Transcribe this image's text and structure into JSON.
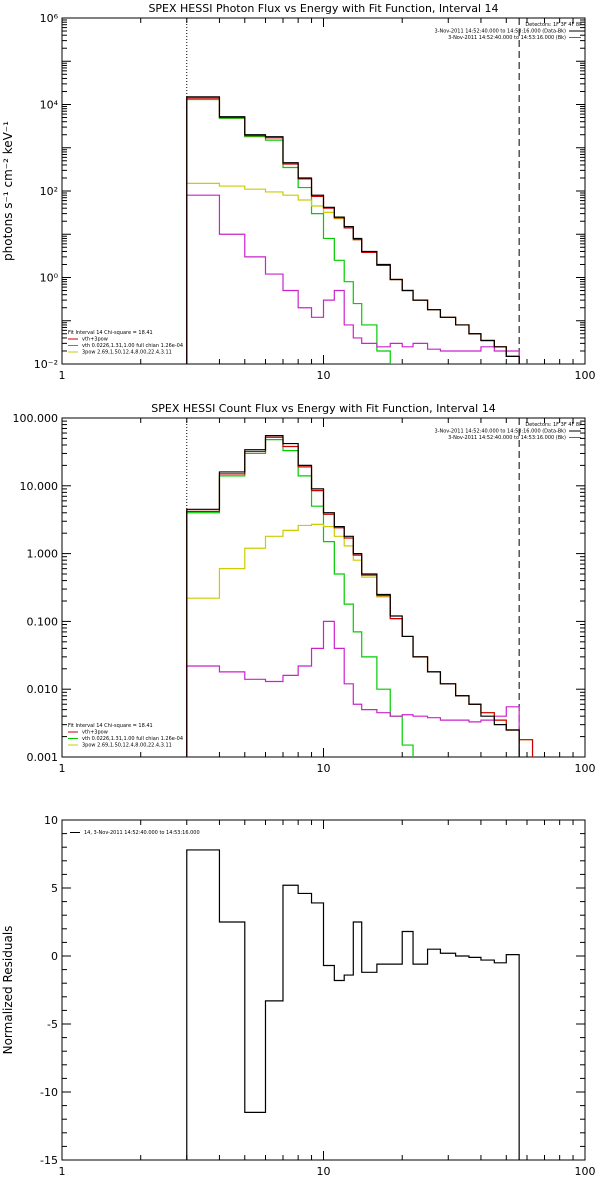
{
  "chart_data": [
    {
      "type": "line",
      "title": "SPEX HESSI Photon Flux vs Energy with Fit Function, Interval 14",
      "ylabel": "photons s⁻¹ cm⁻² keV⁻¹",
      "xlabel": "",
      "xscale": "log",
      "yscale": "log",
      "xlim": [
        1,
        100
      ],
      "ylim": [
        0.01,
        1000000
      ],
      "x_ticks": [
        "1",
        "10",
        "100"
      ],
      "y_ticks": [
        {
          "value": 0.01,
          "label": "10⁻²"
        },
        {
          "value": 1,
          "label": "10⁰"
        },
        {
          "value": 100,
          "label": "10²"
        },
        {
          "value": 10000,
          "label": "10⁴"
        },
        {
          "value": 1000000,
          "label": "10⁶"
        }
      ],
      "fit_range_keV": [
        3,
        56
      ],
      "legend_top_right": {
        "header": "Detectors: 1F 3F 4F 8F",
        "entries": [
          {
            "text": "3-Nov-2011 14:52:40.000 to 14:53:16.000 (Data-Bk)",
            "color": "#000000"
          },
          {
            "text": "3-Nov-2011 14:52:40.000 to 14:53:16.000 (Bk)",
            "color": "#cc22cc"
          }
        ]
      },
      "legend_bottom_left": {
        "header": "Fit Interval 14   Chi-square = 18.41",
        "entries": [
          {
            "text": "vth+3pow",
            "color": "#cc0000"
          },
          {
            "text": "vth 0.0226,1.31,1.00  full chian 1.26e-04",
            "color": "#00cc00"
          },
          {
            "text": "3pow 2.69,1.50,12.4,8.00,22.4,3.11",
            "color": "#cccc00"
          }
        ]
      },
      "bin_edges": [
        3,
        4,
        5,
        6,
        7,
        8,
        9,
        10,
        11,
        12,
        13,
        14,
        16,
        18,
        20,
        22,
        25,
        28,
        32,
        36,
        40,
        45,
        50,
        56,
        63
      ],
      "series": [
        {
          "role": "data",
          "color": "#000000",
          "values": [
            15000,
            5200,
            2000,
            1800,
            450,
            200,
            80,
            42,
            25,
            15,
            8,
            4,
            2,
            0.9,
            0.5,
            0.3,
            0.18,
            0.12,
            0.08,
            0.05,
            0.035,
            0.025,
            0.015,
            null
          ]
        },
        {
          "role": "total",
          "color": "#cc0000",
          "values": [
            14000,
            5000,
            1900,
            1700,
            420,
            190,
            75,
            40,
            24,
            14,
            7.5,
            3.8,
            1.9,
            0.9,
            0.5,
            0.3,
            0.18,
            0.12,
            0.08,
            0.05,
            0.035,
            0.025,
            0.015,
            0.008
          ]
        },
        {
          "role": "thermal",
          "color": "#00cc00",
          "values": [
            13000,
            4800,
            1800,
            1500,
            350,
            120,
            30,
            8,
            2.5,
            0.8,
            0.25,
            0.08,
            0.02,
            0.005,
            null,
            null,
            null,
            null,
            null,
            null,
            null,
            null,
            null,
            null
          ]
        },
        {
          "role": "power",
          "color": "#cccc00",
          "values": [
            150,
            130,
            110,
            95,
            80,
            62,
            45,
            32,
            23,
            14,
            7.5,
            3.8,
            1.9,
            0.9,
            0.5,
            0.3,
            0.18,
            0.12,
            0.08,
            0.05,
            0.035,
            0.025,
            0.015,
            0.008
          ]
        },
        {
          "role": "background",
          "color": "#cc22cc",
          "values": [
            80,
            10,
            3,
            1.2,
            0.5,
            0.2,
            0.12,
            0.3,
            0.5,
            0.08,
            0.04,
            0.03,
            0.025,
            0.03,
            0.025,
            0.03,
            0.022,
            0.02,
            0.02,
            0.02,
            0.025,
            0.02,
            0.02,
            null
          ]
        }
      ]
    },
    {
      "type": "line",
      "title": "SPEX HESSI Count Flux vs Energy with Fit Function, Interval 14",
      "ylabel": "",
      "xlabel": "",
      "xscale": "log",
      "yscale": "log",
      "xlim": [
        1,
        100
      ],
      "ylim": [
        0.001,
        100
      ],
      "x_ticks": [
        "1",
        "10",
        "100"
      ],
      "y_ticks": [
        {
          "value": 0.001,
          "label": "0.001"
        },
        {
          "value": 0.01,
          "label": "0.010"
        },
        {
          "value": 0.1,
          "label": "0.100"
        },
        {
          "value": 1,
          "label": "1.000"
        },
        {
          "value": 10,
          "label": "10.000"
        },
        {
          "value": 100,
          "label": "100.000"
        }
      ],
      "fit_range_keV": [
        3,
        56
      ],
      "legend_top_right": {
        "header": "Detectors: 1F 3F 4F 8F",
        "entries": [
          {
            "text": "3-Nov-2011 14:52:40.000 to 14:53:16.000 (Data-Bk)",
            "color": "#000000"
          },
          {
            "text": "3-Nov-2011 14:52:40.000 to 14:53:16.000 (Bk)",
            "color": "#cc22cc"
          }
        ]
      },
      "legend_bottom_left": {
        "header": "Fit Interval 14   Chi-square = 18.41",
        "entries": [
          {
            "text": "vth+3pow",
            "color": "#cc0000"
          },
          {
            "text": "vth 0.0226,1.31,1.00  full chian 1.26e-04",
            "color": "#00cc00"
          },
          {
            "text": "3pow 2.69,1.50,12.4,8.00,22.4,3.11",
            "color": "#cccc00"
          }
        ]
      },
      "bin_edges": [
        3,
        4,
        5,
        6,
        7,
        8,
        9,
        10,
        11,
        12,
        13,
        14,
        16,
        18,
        20,
        22,
        25,
        28,
        32,
        36,
        40,
        45,
        50,
        56,
        63
      ],
      "series": [
        {
          "role": "data",
          "color": "#000000",
          "values": [
            4.5,
            16,
            34,
            55,
            42,
            20,
            9,
            4,
            2.5,
            1.8,
            1.0,
            0.5,
            0.25,
            0.12,
            0.06,
            0.03,
            0.018,
            0.012,
            0.008,
            0.006,
            0.004,
            0.003,
            0.0025,
            null
          ]
        },
        {
          "role": "total",
          "color": "#cc0000",
          "values": [
            4.2,
            15,
            32,
            52,
            38,
            19,
            8.5,
            3.8,
            2.4,
            1.7,
            0.95,
            0.48,
            0.24,
            0.11,
            0.06,
            0.03,
            0.018,
            0.012,
            0.008,
            0.006,
            0.0045,
            0.0035,
            0.0025,
            0.0018
          ]
        },
        {
          "role": "thermal",
          "color": "#00cc00",
          "values": [
            4.0,
            14,
            30,
            48,
            33,
            14,
            5,
            1.5,
            0.5,
            0.18,
            0.07,
            0.03,
            0.01,
            0.004,
            0.0015,
            null,
            null,
            null,
            null,
            null,
            null,
            null,
            null,
            null
          ]
        },
        {
          "role": "power",
          "color": "#cccc00",
          "values": [
            0.22,
            0.6,
            1.2,
            1.8,
            2.2,
            2.6,
            2.7,
            2.5,
            1.8,
            1.3,
            0.8,
            0.45,
            0.23,
            0.11,
            0.06,
            0.03,
            0.018,
            0.012,
            0.008,
            0.006,
            0.0045,
            0.0035,
            0.0025,
            0.0018
          ]
        },
        {
          "role": "background",
          "color": "#cc22cc",
          "values": [
            0.022,
            0.018,
            0.014,
            0.013,
            0.016,
            0.022,
            0.04,
            0.1,
            0.04,
            0.012,
            0.006,
            0.005,
            0.0045,
            0.004,
            0.0042,
            0.004,
            0.0038,
            0.0035,
            0.0035,
            0.0033,
            0.0035,
            0.004,
            0.0055,
            null
          ]
        }
      ]
    },
    {
      "type": "line",
      "title": "",
      "ylabel": "Normalized Residuals",
      "xlabel": "",
      "xscale": "log",
      "yscale": "linear",
      "xlim": [
        1,
        100
      ],
      "ylim": [
        -15,
        10
      ],
      "x_ticks": [
        "1",
        "10",
        "100"
      ],
      "y_ticks": [
        {
          "value": -15,
          "label": "-15"
        },
        {
          "value": -10,
          "label": "-10"
        },
        {
          "value": -5,
          "label": "-5"
        },
        {
          "value": 0,
          "label": "0"
        },
        {
          "value": 5,
          "label": "5"
        },
        {
          "value": 10,
          "label": "10"
        }
      ],
      "legend_top_left": {
        "entries": [
          {
            "text": "14,  3-Nov-2011 14:52:40.000 to 14:53:16.000",
            "color": "#000000"
          }
        ]
      },
      "bin_edges": [
        3,
        4,
        5,
        6,
        7,
        8,
        9,
        10,
        11,
        12,
        13,
        14,
        16,
        18,
        20,
        22,
        25,
        28,
        32,
        36,
        40,
        45,
        50,
        56
      ],
      "series": [
        {
          "role": "residuals",
          "color": "#000000",
          "values": [
            7.8,
            2.5,
            -11.5,
            -3.3,
            5.2,
            4.6,
            3.9,
            -0.7,
            -1.8,
            -1.4,
            2.5,
            -1.2,
            -0.6,
            -0.6,
            1.8,
            -0.6,
            0.5,
            0.2,
            0,
            -0.1,
            -0.3,
            -0.5,
            0.1
          ]
        }
      ]
    }
  ]
}
